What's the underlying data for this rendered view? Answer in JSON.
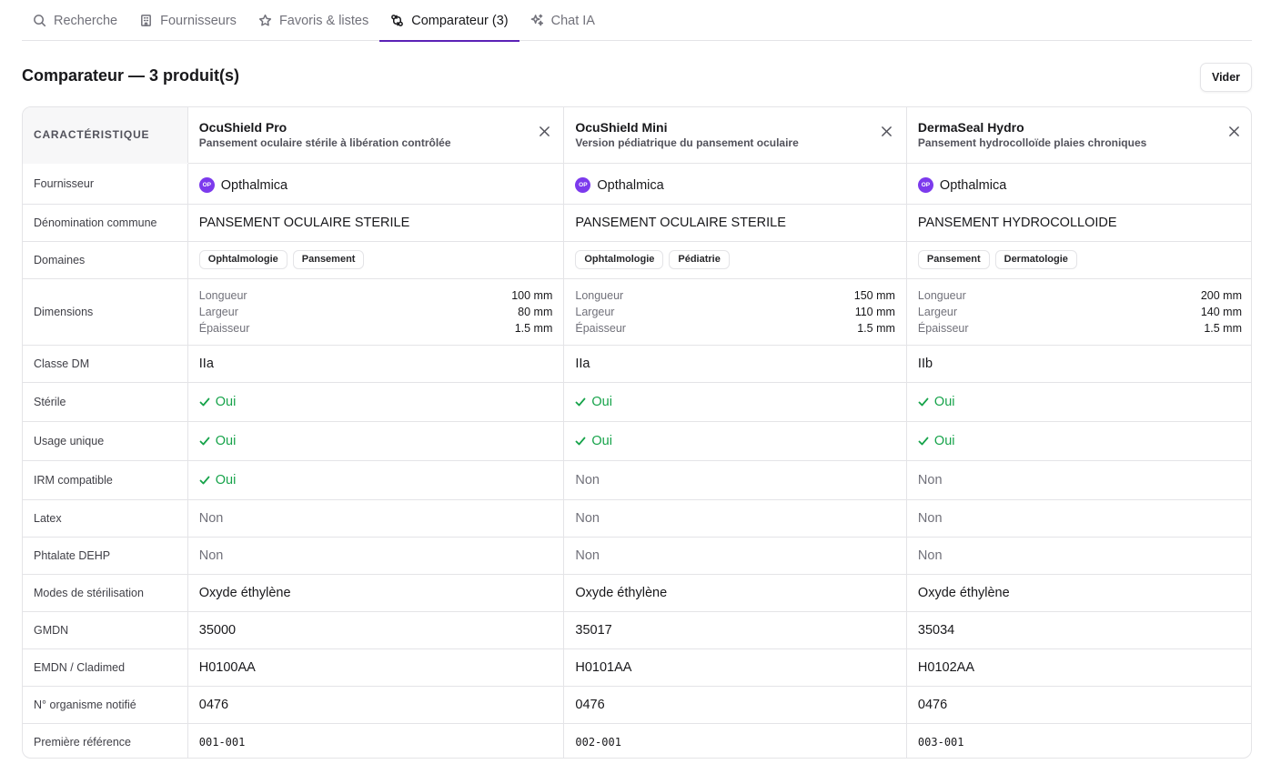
{
  "tabs": [
    {
      "label": "Recherche",
      "icon": "search-icon"
    },
    {
      "label": "Fournisseurs",
      "icon": "building-icon"
    },
    {
      "label": "Favoris & listes",
      "icon": "star-icon"
    },
    {
      "label": "Comparateur (3)",
      "icon": "compare-icon",
      "active": true
    },
    {
      "label": "Chat IA",
      "icon": "sparkles-icon"
    }
  ],
  "header": {
    "title": "Comparateur — 3 produit(s)",
    "clear_label": "Vider"
  },
  "table": {
    "feature_header": "CARACTÉRISTIQUE",
    "products": [
      {
        "name": "OcuShield Pro",
        "description": "Pansement oculaire stérile à libération contrôlée"
      },
      {
        "name": "OcuShield Mini",
        "description": "Version pédiatrique du pansement oculaire"
      },
      {
        "name": "DermaSeal Hydro",
        "description": "Pansement hydrocolloïde plaies chroniques"
      }
    ],
    "labels": {
      "fournisseur": "Fournisseur",
      "denomination": "Dénomination commune",
      "domaines": "Domaines",
      "dimensions": "Dimensions",
      "classe": "Classe DM",
      "sterile": "Stérile",
      "usage": "Usage unique",
      "irm": "IRM compatible",
      "latex": "Latex",
      "dehp": "Phtalate DEHP",
      "sterilisation": "Modes de stérilisation",
      "gmdn": "GMDN",
      "emdn": "EMDN / Cladimed",
      "organisme": "N° organisme notifié",
      "reference": "Première référence"
    },
    "dim_keys": {
      "longueur": "Longueur",
      "largeur": "Largeur",
      "epaisseur": "Épaisseur"
    },
    "values": [
      {
        "supplier_initials": "OP",
        "supplier": "Opthalmica",
        "denomination": "PANSEMENT OCULAIRE STERILE",
        "domains": [
          "Ophtalmologie",
          "Pansement"
        ],
        "longueur": "100 mm",
        "largeur": "80 mm",
        "epaisseur": "1.5 mm",
        "classe": "IIa",
        "sterile": "Oui",
        "usage": "Oui",
        "irm": "Oui",
        "latex": "Non",
        "dehp": "Non",
        "sterilisation": "Oxyde éthylène",
        "gmdn": "35000",
        "emdn": "H0100AA",
        "organisme": "0476",
        "reference": "001-001"
      },
      {
        "supplier_initials": "OP",
        "supplier": "Opthalmica",
        "denomination": "PANSEMENT OCULAIRE STERILE",
        "domains": [
          "Ophtalmologie",
          "Pédiatrie"
        ],
        "longueur": "150 mm",
        "largeur": "110 mm",
        "epaisseur": "1.5 mm",
        "classe": "IIa",
        "sterile": "Oui",
        "usage": "Oui",
        "irm": "Non",
        "latex": "Non",
        "dehp": "Non",
        "sterilisation": "Oxyde éthylène",
        "gmdn": "35017",
        "emdn": "H0101AA",
        "organisme": "0476",
        "reference": "002-001"
      },
      {
        "supplier_initials": "OP",
        "supplier": "Opthalmica",
        "denomination": "PANSEMENT HYDROCOLLOIDE",
        "domains": [
          "Pansement",
          "Dermatologie"
        ],
        "longueur": "200 mm",
        "largeur": "140 mm",
        "epaisseur": "1.5 mm",
        "classe": "IIb",
        "sterile": "Oui",
        "usage": "Oui",
        "irm": "Non",
        "latex": "Non",
        "dehp": "Non",
        "sterilisation": "Oxyde éthylène",
        "gmdn": "35034",
        "emdn": "H0102AA",
        "organisme": "0476",
        "reference": "003-001"
      }
    ]
  },
  "colors": {
    "accent": "#5b21b6",
    "yes": "#16a34a",
    "badge": "#7c3aed"
  }
}
